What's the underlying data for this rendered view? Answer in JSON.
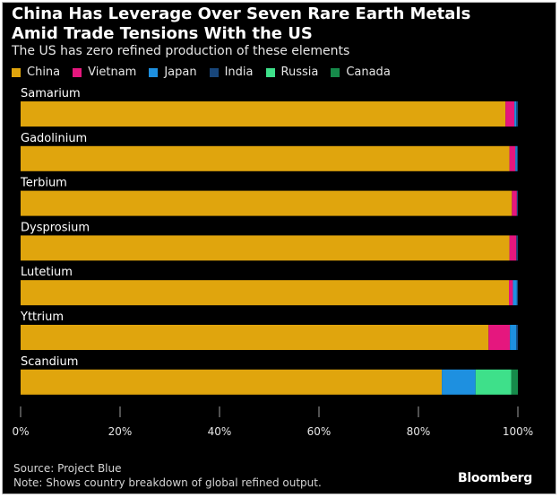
{
  "chart_data": {
    "type": "bar",
    "orientation": "horizontal",
    "stacked": true,
    "title": "China Has Leverage Over Seven Rare Earth Metals Amid Trade Tensions With the US",
    "subtitle": "The US has zero refined production of these elements",
    "categories": [
      "Samarium",
      "Gadolinium",
      "Terbium",
      "Dysprosium",
      "Lutetium",
      "Yttrium",
      "Scandium"
    ],
    "series": [
      {
        "name": "China",
        "color": "#e0a50d",
        "values": [
          97.5,
          98.3,
          98.8,
          98.3,
          98.2,
          94.1,
          84.7
        ]
      },
      {
        "name": "Vietnam",
        "color": "#e5177e",
        "values": [
          1.8,
          1.2,
          1.0,
          1.4,
          0.8,
          4.3,
          0.0
        ]
      },
      {
        "name": "Japan",
        "color": "#1e90e0",
        "values": [
          0.4,
          0.3,
          0.0,
          0.0,
          0.8,
          1.3,
          6.8
        ]
      },
      {
        "name": "India",
        "color": "#18467a",
        "values": [
          0.3,
          0.2,
          0.2,
          0.3,
          0.2,
          0.3,
          0.0
        ]
      },
      {
        "name": "Russia",
        "color": "#3ee08a",
        "values": [
          0.0,
          0.0,
          0.0,
          0.0,
          0.0,
          0.0,
          7.2
        ]
      },
      {
        "name": "Canada",
        "color": "#168a4a",
        "values": [
          0.0,
          0.0,
          0.0,
          0.0,
          0.0,
          0.0,
          1.3
        ]
      }
    ],
    "xlim": [
      0,
      100
    ],
    "xticks": [
      "0%",
      "20%",
      "40%",
      "60%",
      "80%",
      "100%"
    ],
    "xtick_values": [
      0,
      20,
      40,
      60,
      80,
      100
    ],
    "xlabel": "",
    "ylabel": "",
    "legend": "top-left",
    "grid": false
  },
  "footer": {
    "source": "Source: Project Blue",
    "note": "Note: Shows country breakdown of global refined output."
  },
  "brand": "Bloomberg",
  "colors": {
    "background": "#000000",
    "text": "#ffffff",
    "axis": "#a0a0a0"
  }
}
